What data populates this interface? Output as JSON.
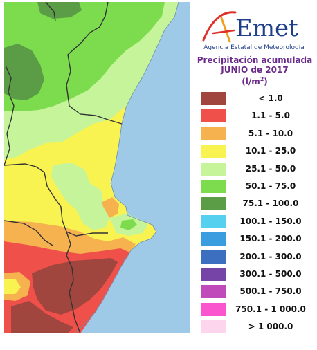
{
  "logo": {
    "wordmark": "AEmet",
    "agency": "Agencia Estatal de Meteorología"
  },
  "title": {
    "line1": "Precipitación acumulada",
    "line2": "JUNIO de 2017",
    "unit_base": "(l/m",
    "unit_sup": "2",
    "unit_close": ")"
  },
  "legend": [
    {
      "label": "< 1.0",
      "color": "#a0463f"
    },
    {
      "label": "1.1 - 5.0",
      "color": "#f0504a"
    },
    {
      "label": "5.1 - 10.0",
      "color": "#f7b250"
    },
    {
      "label": "10.1 - 25.0",
      "color": "#f9f351"
    },
    {
      "label": "25.1 - 50.0",
      "color": "#c6f49a"
    },
    {
      "label": "50.1 - 75.0",
      "color": "#7ddb4e"
    },
    {
      "label": "75.1 - 100.0",
      "color": "#5a9d46"
    },
    {
      "label": "100.1 - 150.0",
      "color": "#55d0ee"
    },
    {
      "label": "150.1 - 200.0",
      "color": "#3a9de0"
    },
    {
      "label": "200.1 - 300.0",
      "color": "#3c6fc0"
    },
    {
      "label": "300.1 - 500.0",
      "color": "#7544a6"
    },
    {
      "label": "500.1 - 750.0",
      "color": "#c04aba"
    },
    {
      "label": "750.1 - 1 000.0",
      "color": "#fb54cf"
    },
    {
      "label": "> 1 000.0",
      "color": "#fdd6ee"
    }
  ],
  "map": {
    "sea_color": "#9ecae8",
    "border_color": "#333333"
  }
}
